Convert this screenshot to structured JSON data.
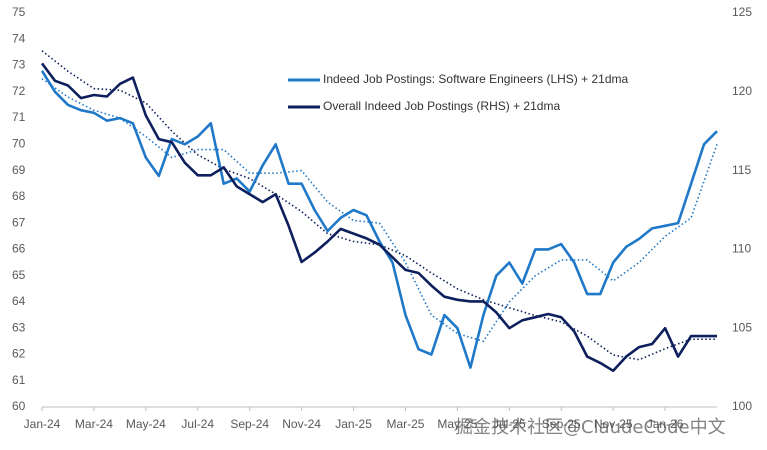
{
  "chart_data": {
    "type": "line",
    "x": [
      0,
      0.5,
      1,
      1.5,
      2,
      2.5,
      3,
      3.5,
      4,
      4.5,
      5,
      5.5,
      6,
      6.5,
      7,
      7.5,
      8,
      8.5,
      9,
      9.5,
      10,
      10.5,
      11,
      11.5,
      12,
      12.5,
      13,
      13.5,
      14,
      14.5,
      15,
      15.5,
      16,
      16.5,
      17,
      17.5,
      18,
      18.5,
      19,
      19.5,
      20,
      20.5,
      21,
      21.5,
      22,
      22.5,
      23,
      23.5,
      24,
      24.5,
      25,
      25.5,
      26
    ],
    "dma_x": [
      0,
      1,
      2,
      3,
      4,
      5,
      6,
      7,
      8,
      9,
      10,
      11,
      12,
      13,
      14,
      15,
      16,
      17,
      18,
      19,
      20,
      21,
      22,
      23,
      24,
      25,
      26
    ],
    "xlim": [
      0,
      26.5
    ],
    "xticks": [
      {
        "value": 0,
        "label": "Jan-24"
      },
      {
        "value": 2,
        "label": "Mar-24"
      },
      {
        "value": 4,
        "label": "May-24"
      },
      {
        "value": 6,
        "label": "Jul-24"
      },
      {
        "value": 8,
        "label": "Sep-24"
      },
      {
        "value": 10,
        "label": "Nov-24"
      },
      {
        "value": 12,
        "label": "Jan-25"
      },
      {
        "value": 14,
        "label": "Mar-25"
      },
      {
        "value": 16,
        "label": "May-25"
      },
      {
        "value": 18,
        "label": "Jul-25"
      },
      {
        "value": 20,
        "label": "Sep-25"
      },
      {
        "value": 22,
        "label": "Nov-25"
      },
      {
        "value": 24,
        "label": "Jan-26"
      }
    ],
    "ylim": [
      60,
      75
    ],
    "yticks": [
      60,
      61,
      62,
      63,
      64,
      65,
      66,
      67,
      68,
      69,
      70,
      71,
      72,
      73,
      74,
      75
    ],
    "y2lim": [
      100,
      125
    ],
    "y2ticks": [
      100,
      105,
      110,
      115,
      120,
      125
    ],
    "series": [
      {
        "name": "Indeed Job Postings: Software Engineers (LHS) + 21dma",
        "color": "#1f78c8",
        "axis": "y",
        "values": [
          72.8,
          72.0,
          71.5,
          71.3,
          71.2,
          70.9,
          71.0,
          70.8,
          69.5,
          68.8,
          70.2,
          70.0,
          70.3,
          70.8,
          68.5,
          68.7,
          68.2,
          69.2,
          70.0,
          68.5,
          68.5,
          67.5,
          66.7,
          67.2,
          67.5,
          67.3,
          66.3,
          65.5,
          63.5,
          62.2,
          62.0,
          63.5,
          63.0,
          61.5,
          63.5,
          65.0,
          65.5,
          64.7,
          66.0,
          66.0,
          66.2,
          65.5,
          64.3,
          64.3,
          65.5,
          66.1,
          66.4,
          66.8,
          66.9,
          67.0,
          68.5,
          70.0,
          70.5
        ],
        "dma": [
          72.5,
          71.8,
          71.3,
          71.0,
          70.3,
          69.5,
          69.8,
          69.8,
          68.9,
          68.9,
          69.0,
          67.8,
          67.1,
          67.0,
          65.5,
          63.5,
          62.8,
          62.5,
          64.0,
          65.0,
          65.6,
          65.6,
          64.8,
          65.5,
          66.5,
          67.2,
          70.0
        ]
      },
      {
        "name": "Overall Indeed Job Postings (RHS) + 21dma",
        "color": "#0d1f5c",
        "axis": "y2",
        "values": [
          121.8,
          120.7,
          120.4,
          119.6,
          119.8,
          119.7,
          120.5,
          120.9,
          118.5,
          117.0,
          116.8,
          115.5,
          114.7,
          114.7,
          115.2,
          114.0,
          113.5,
          113.0,
          113.5,
          111.5,
          109.2,
          109.8,
          110.5,
          111.3,
          111.0,
          110.7,
          110.3,
          109.5,
          108.7,
          108.5,
          107.7,
          107.0,
          106.8,
          106.7,
          106.7,
          106.0,
          105.0,
          105.5,
          105.7,
          105.9,
          105.7,
          104.8,
          103.2,
          102.8,
          102.3,
          103.2,
          103.8,
          104.0,
          105.0,
          103.2,
          104.5,
          104.5,
          104.5
        ],
        "dma": [
          122.6,
          121.3,
          120.2,
          120.1,
          119.3,
          117.5,
          116.0,
          115.1,
          114.5,
          113.5,
          112.4,
          111.0,
          110.5,
          110.3,
          109.6,
          108.5,
          107.5,
          106.8,
          106.3,
          105.8,
          105.4,
          104.5,
          103.3,
          103.0,
          103.7,
          104.3,
          104.3
        ]
      }
    ],
    "watermark": "掘金技术社区@ClaudeCode中文"
  }
}
